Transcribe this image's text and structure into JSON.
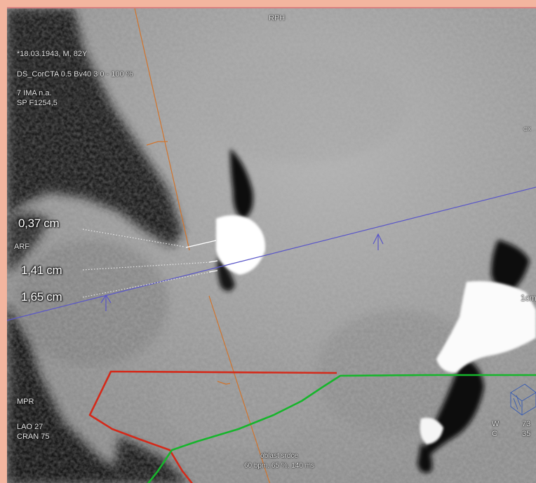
{
  "orientation": {
    "top": "RPH",
    "left": "ARF"
  },
  "patient_info": {
    "line1": "*18.03.1943, M, 82Y",
    "line2": "DS_CorCTA  0.5  Bv40  3  0 - 100 %",
    "line3": "7 IMA n.a.",
    "line4": "SP F1254,5"
  },
  "measurements": {
    "m1": "0,37 cm",
    "m2": "1,41 cm",
    "m3": "1,65 cm"
  },
  "view_info": {
    "mode": "MPR",
    "angle1": "LAO 27",
    "angle2": "CRAN 75"
  },
  "window": {
    "w_label": "W",
    "c_label": "C",
    "w_value": "73",
    "c_value": "35"
  },
  "clipped_labels": {
    "right_edge_scale": "1cm",
    "top_right": "CX"
  },
  "caption": {
    "line1": "oblast srdce",
    "line2": "60 bpm, 65 %, 140 ms"
  },
  "colors": {
    "frame_border": "#f3b59f",
    "red_contour": "#d42a1a",
    "green_contour": "#17b52c",
    "blue_line": "#5a57c8",
    "orange_line": "#d0742e"
  }
}
